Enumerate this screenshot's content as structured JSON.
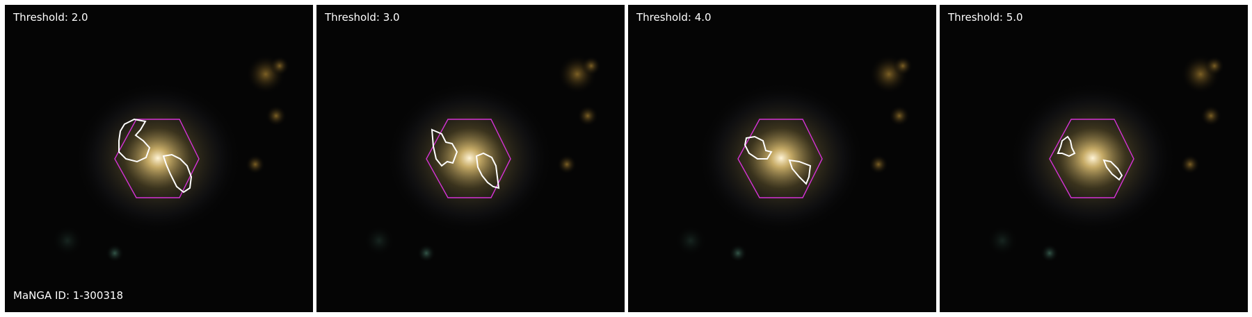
{
  "panels": [
    {
      "threshold_label": "Threshold: 2.0"
    },
    {
      "threshold_label": "Threshold: 3.0"
    },
    {
      "threshold_label": "Threshold: 4.0"
    },
    {
      "threshold_label": "Threshold: 5.0"
    }
  ],
  "id_label": "MaNGA ID: 1-300318",
  "colors": {
    "background": "#050505",
    "hexagon": "#d633d6",
    "contour": "#ffffff",
    "text": "#ffffff"
  }
}
